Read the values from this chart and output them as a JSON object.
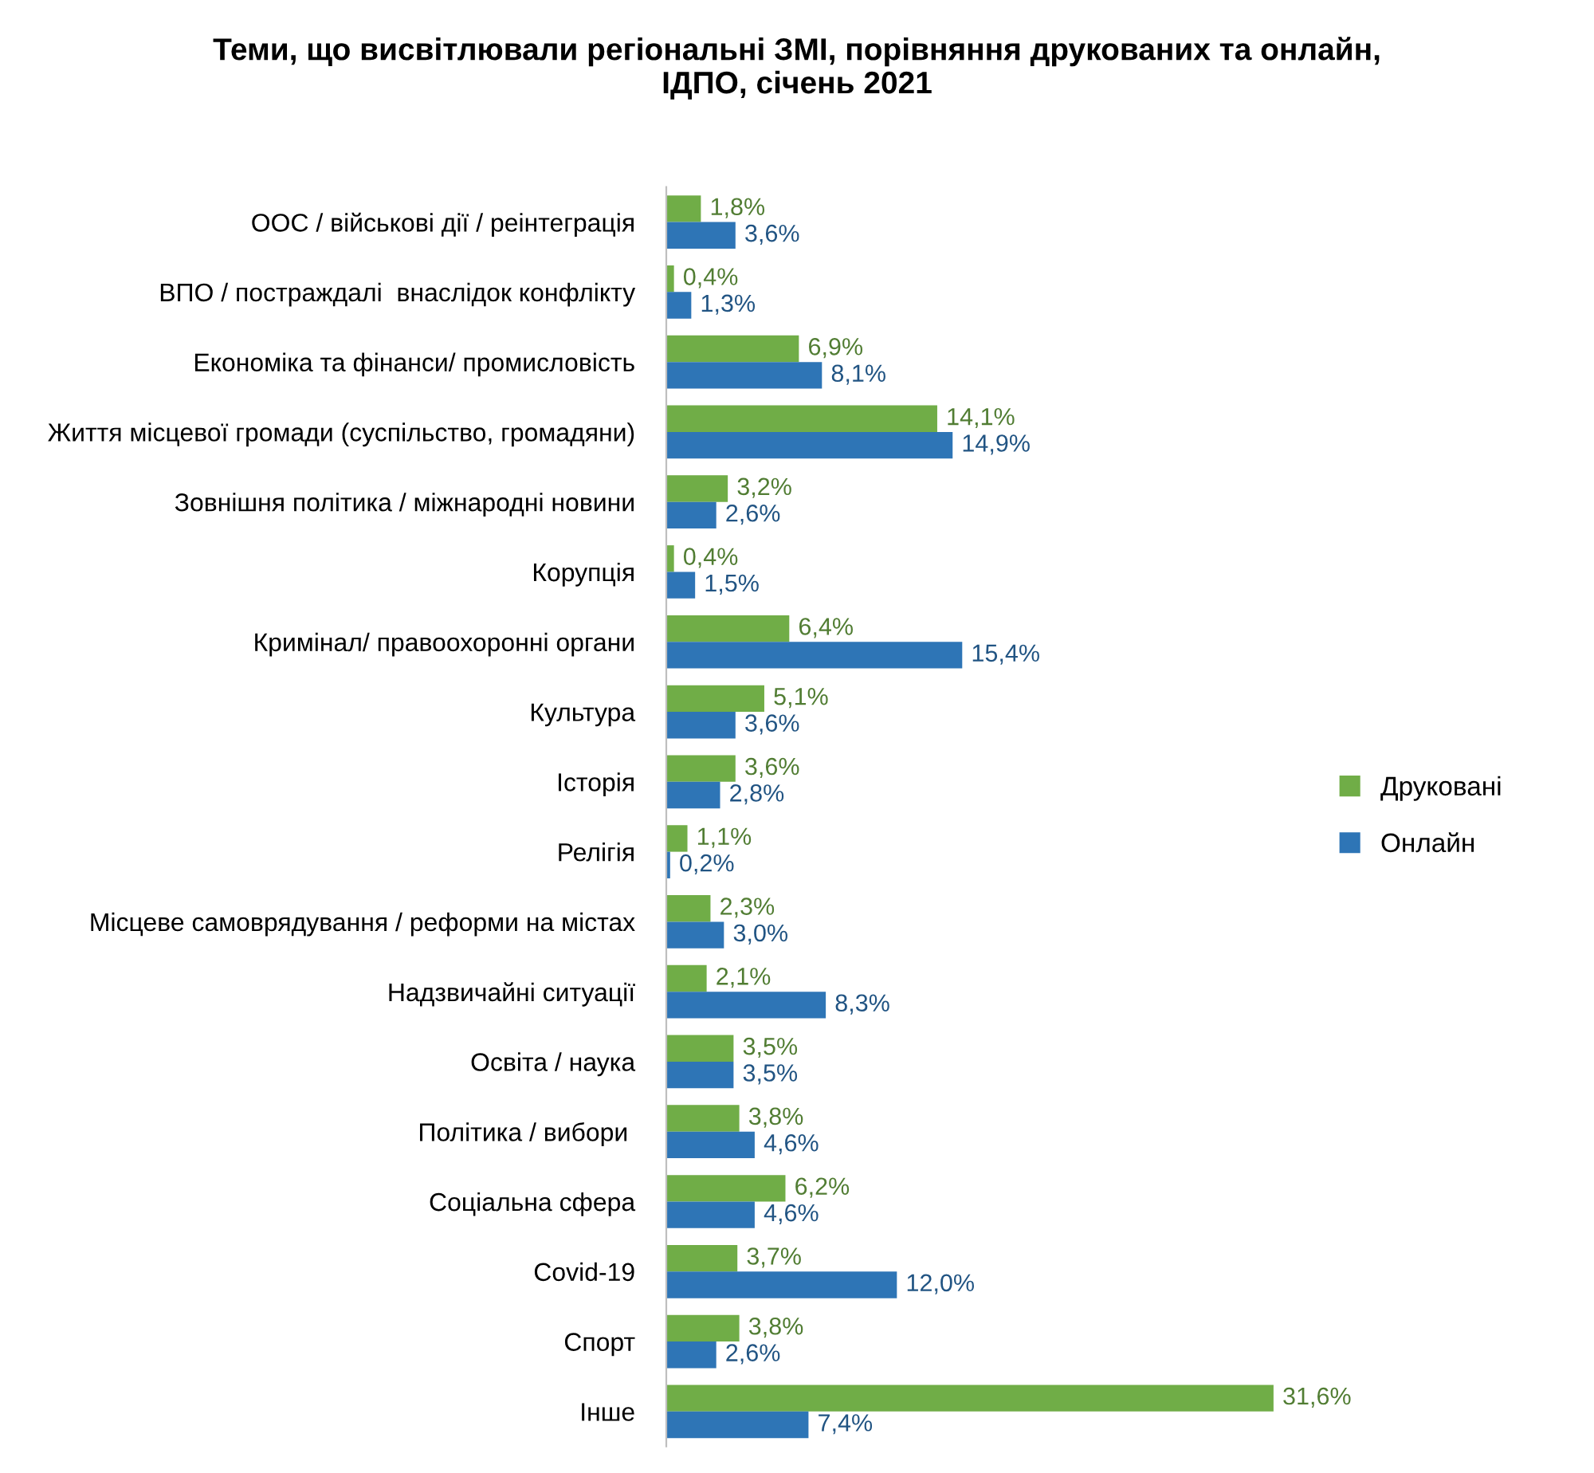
{
  "chart_data": {
    "type": "bar",
    "orientation": "horizontal",
    "title": "Теми, що висвітлювали регіональні ЗМІ, порівняння друкованих та онлайн,\nІДПО, січень 2021",
    "categories": [
      "ООС / військові дії / реінтеграція",
      "ВПО / постраждалі  внаслідок конфлікту",
      "Економіка та фінанси/ промисловість",
      "Життя місцевої громади (суспільство, громадяни)",
      "Зовнішня політика / міжнародні новини",
      "Корупція",
      "Кримінал/ правоохоронні органи",
      "Культура",
      "Історія",
      "Релігія",
      "Місцеве самоврядування / реформи на містах",
      "Надзвичайні ситуації",
      "Освіта / наука",
      "Політика / вибори ",
      "Соціальна сфера",
      "Covid-19",
      "Спорт",
      "Інше"
    ],
    "series": [
      {
        "name": "Друковані",
        "color": "#70ad47",
        "values": [
          1.8,
          0.4,
          6.9,
          14.1,
          3.2,
          0.4,
          6.4,
          5.1,
          3.6,
          1.1,
          2.3,
          2.1,
          3.5,
          3.8,
          6.2,
          3.7,
          3.8,
          31.6
        ],
        "value_labels": [
          "1,8%",
          "0,4%",
          "6,9%",
          "14,1%",
          "3,2%",
          "0,4%",
          "6,4%",
          "5,1%",
          "3,6%",
          "1,1%",
          "2,3%",
          "2,1%",
          "3,5%",
          "3,8%",
          "6,2%",
          "3,7%",
          "3,8%",
          "31,6%"
        ]
      },
      {
        "name": "Онлайн",
        "color": "#2e75b6",
        "values": [
          3.6,
          1.3,
          8.1,
          14.9,
          2.6,
          1.5,
          15.4,
          3.6,
          2.8,
          0.2,
          3.0,
          8.3,
          3.5,
          4.6,
          4.6,
          12.0,
          2.6,
          7.4
        ],
        "value_labels": [
          "3,6%",
          "1,3%",
          "8,1%",
          "14,9%",
          "2,6%",
          "1,5%",
          "15,4%",
          "3,6%",
          "2,8%",
          "0,2%",
          "3,0%",
          "8,3%",
          "3,5%",
          "4,6%",
          "4,6%",
          "12,0%",
          "2,6%",
          "7,4%"
        ]
      }
    ],
    "legend": "right",
    "grid": false
  }
}
